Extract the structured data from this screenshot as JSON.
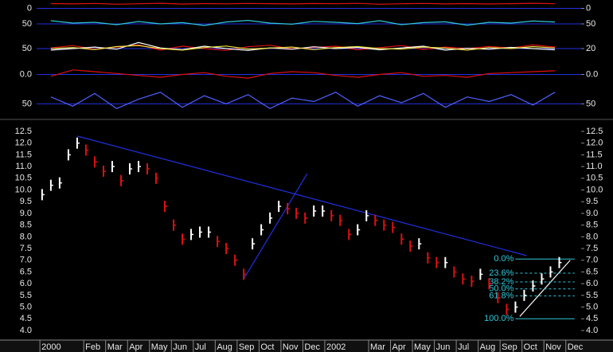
{
  "chart_data": [
    {
      "type": "line",
      "xlim": [
        -1.15,
        23.7
      ],
      "ylim": [
        -100,
        100
      ],
      "yticks": [
        0
      ],
      "x": [
        -0.5,
        0.5,
        1.5,
        2.5,
        3.5,
        4.5,
        5.5,
        6.5,
        7.5,
        8.5,
        9.5,
        10.5,
        11.5,
        12.5,
        13.5,
        14.5,
        15.5,
        16.5,
        17.5,
        18.5,
        19.5,
        20.5,
        21.5,
        22.5
      ],
      "series": [
        {
          "color": "#e01010",
          "values": [
            80,
            75,
            82,
            70,
            78,
            85,
            72,
            80,
            76,
            83,
            79,
            74,
            81,
            77,
            84,
            70,
            78,
            82,
            75,
            80,
            73,
            79,
            85,
            77
          ]
        }
      ]
    },
    {
      "type": "line",
      "xlim": [
        -1.15,
        23.7
      ],
      "ylim": [
        0,
        100
      ],
      "yticks": [
        50
      ],
      "x": [
        -0.5,
        0.5,
        1.5,
        2.5,
        3.5,
        4.5,
        5.5,
        6.5,
        7.5,
        8.5,
        9.5,
        10.5,
        11.5,
        12.5,
        13.5,
        14.5,
        15.5,
        16.5,
        17.5,
        18.5,
        19.5,
        20.5,
        21.5,
        22.5
      ],
      "series": [
        {
          "color": "#30c8d8",
          "values": [
            70,
            55,
            60,
            45,
            65,
            50,
            58,
            40,
            62,
            72,
            55,
            48,
            66,
            60,
            52,
            70,
            45,
            58,
            63,
            42,
            60,
            55,
            68,
            62
          ]
        }
      ]
    },
    {
      "type": "line",
      "xlim": [
        -1.15,
        23.7
      ],
      "ylim": [
        0,
        100
      ],
      "yticks": [
        50
      ],
      "y2lim": [
        -10,
        50
      ],
      "y2ticks": [
        20
      ],
      "x": [
        -0.5,
        0.5,
        1.5,
        2.5,
        3.5,
        4.5,
        5.5,
        6.5,
        7.5,
        8.5,
        9.5,
        10.5,
        11.5,
        12.5,
        13.5,
        14.5,
        15.5,
        16.5,
        17.5,
        18.5,
        19.5,
        20.5,
        21.5,
        22.5
      ],
      "series": [
        {
          "color": "#e01010",
          "values": [
            52,
            60,
            48,
            55,
            62,
            45,
            58,
            50,
            44,
            56,
            61,
            49,
            54,
            58,
            46,
            53,
            60,
            47,
            55,
            50,
            57,
            52,
            62,
            55
          ]
        },
        {
          "color": "#ffffff",
          "values": [
            45,
            50,
            55,
            48,
            70,
            52,
            46,
            58,
            50,
            44,
            52,
            48,
            56,
            50,
            54,
            46,
            52,
            58,
            45,
            51,
            48,
            54,
            50,
            46
          ]
        },
        {
          "color": "#f0e040",
          "axis": "y2",
          "values": [
            20,
            22,
            18,
            24,
            26,
            20,
            17,
            22,
            25,
            19,
            21,
            23,
            18,
            22,
            24,
            20,
            19,
            23,
            21,
            17,
            22,
            20,
            24,
            21
          ]
        }
      ]
    },
    {
      "type": "line",
      "xlim": [
        -1.15,
        23.7
      ],
      "ylim": [
        -1,
        1
      ],
      "yticks": [
        {
          "value": 0,
          "label": "0.0"
        }
      ],
      "x": [
        -0.5,
        0.5,
        1.5,
        2.5,
        3.5,
        4.5,
        5.5,
        6.5,
        7.5,
        8.5,
        9.5,
        10.5,
        11.5,
        12.5,
        13.5,
        14.5,
        15.5,
        16.5,
        17.5,
        18.5,
        19.5,
        20.5,
        21.5,
        22.5
      ],
      "series": [
        {
          "color": "#e01010",
          "values": [
            -0.2,
            0.5,
            0.3,
            0.1,
            -0.1,
            -0.3,
            0.0,
            0.2,
            -0.2,
            -0.4,
            0.1,
            0.3,
            0.2,
            -0.1,
            -0.3,
            0.0,
            0.2,
            -0.2,
            -0.1,
            -0.3,
            0.1,
            0.2,
            0.3,
            0.4
          ]
        }
      ]
    },
    {
      "type": "line",
      "xlim": [
        -1.15,
        23.7
      ],
      "ylim": [
        0,
        120
      ],
      "yticks": [
        50
      ],
      "x": [
        -0.5,
        0.5,
        1.5,
        2.5,
        3.5,
        4.5,
        5.5,
        6.5,
        7.5,
        8.5,
        9.5,
        10.5,
        11.5,
        12.5,
        13.5,
        14.5,
        15.5,
        16.5,
        17.5,
        18.5,
        19.5,
        20.5,
        21.5,
        22.5
      ],
      "series": [
        {
          "color": "#5060ff",
          "values": [
            80,
            40,
            95,
            30,
            70,
            100,
            35,
            85,
            50,
            90,
            30,
            75,
            60,
            100,
            40,
            85,
            55,
            95,
            35,
            80,
            60,
            90,
            45,
            100
          ]
        }
      ]
    },
    {
      "type": "price",
      "xlim": [
        -1.15,
        23.7
      ],
      "ylim": [
        4,
        12.5
      ],
      "yticks": [
        {
          "value": 4,
          "label": "4.0"
        },
        4.5,
        {
          "value": 5,
          "label": "5.0"
        },
        5.5,
        {
          "value": 6,
          "label": "6.0"
        },
        6.5,
        {
          "value": 7,
          "label": "7.0"
        },
        7.5,
        {
          "value": 8,
          "label": "8.0"
        },
        8.5,
        {
          "value": 9,
          "label": "9.0"
        },
        9.5,
        {
          "value": 10,
          "label": "10.0"
        },
        10.5,
        {
          "value": 11,
          "label": "11.0"
        },
        11.5,
        {
          "value": 12,
          "label": "12.0"
        },
        12.5
      ],
      "xticks": [
        {
          "value": -1,
          "label": "2000"
        },
        {
          "value": 1,
          "label": "Feb"
        },
        {
          "value": 2,
          "label": "Mar"
        },
        {
          "value": 3,
          "label": "Apr"
        },
        {
          "value": 4,
          "label": "May"
        },
        {
          "value": 5,
          "label": "Jun"
        },
        {
          "value": 6,
          "label": "Jul"
        },
        {
          "value": 7,
          "label": "Aug"
        },
        {
          "value": 8,
          "label": "Sep"
        },
        {
          "value": 9,
          "label": "Oct"
        },
        {
          "value": 10,
          "label": "Nov"
        },
        {
          "value": 11,
          "label": "Dec"
        },
        {
          "value": 12,
          "label": "2002"
        },
        {
          "value": 14,
          "label": "Mar"
        },
        {
          "value": 15,
          "label": "Apr"
        },
        {
          "value": 16,
          "label": "May"
        },
        {
          "value": 17,
          "label": "Jun"
        },
        {
          "value": 18,
          "label": "Jul"
        },
        {
          "value": 19,
          "label": "Aug"
        },
        {
          "value": 20,
          "label": "Sep"
        },
        {
          "value": 21,
          "label": "Oct"
        },
        {
          "value": 22,
          "label": "Nov"
        },
        {
          "value": 23,
          "label": "Dec"
        }
      ],
      "up_color": "#ffffff",
      "down_color": "#e01010",
      "x": [
        -0.9,
        -0.5,
        -0.1,
        0.3,
        0.7,
        1.1,
        1.5,
        1.9,
        2.3,
        2.7,
        3.1,
        3.5,
        3.9,
        4.3,
        4.7,
        5.1,
        5.5,
        5.9,
        6.3,
        6.7,
        7.1,
        7.5,
        7.9,
        8.3,
        8.7,
        9.1,
        9.5,
        9.9,
        10.3,
        10.7,
        11.1,
        11.5,
        11.9,
        12.3,
        12.7,
        13.1,
        13.5,
        13.9,
        14.3,
        14.7,
        15.1,
        15.5,
        15.9,
        16.3,
        16.7,
        17.1,
        17.5,
        17.9,
        18.3,
        18.7,
        19.1,
        19.5,
        19.9,
        20.3,
        20.7,
        21.1,
        21.5,
        21.9,
        22.3,
        22.7
      ],
      "values": [
        9.8,
        10.2,
        10.3,
        11.5,
        12.0,
        11.7,
        11.2,
        10.8,
        11.0,
        10.4,
        10.9,
        11.0,
        10.9,
        10.5,
        9.3,
        8.5,
        7.9,
        8.1,
        8.2,
        8.2,
        7.8,
        7.5,
        7.0,
        6.4,
        7.7,
        8.3,
        8.8,
        9.3,
        9.2,
        9.0,
        8.8,
        9.1,
        9.1,
        8.9,
        8.7,
        8.1,
        8.3,
        8.9,
        8.7,
        8.5,
        8.4,
        7.9,
        7.6,
        7.7,
        7.1,
        6.9,
        6.9,
        6.5,
        6.2,
        6.1,
        6.4,
        6.0,
        5.4,
        4.9,
        5.0,
        5.5,
        5.9,
        6.2,
        6.5,
        6.9
      ],
      "trendlines": [
        {
          "color": "#2030e0",
          "x": [
            0.7,
            21.2
          ],
          "y": [
            12.3,
            7.2
          ]
        },
        {
          "color": "#2030e0",
          "x": [
            8.3,
            11.2
          ],
          "y": [
            6.2,
            10.7
          ]
        },
        {
          "color": "#ffffff",
          "x": [
            20.9,
            23.2
          ],
          "y": [
            4.6,
            7.0
          ]
        }
      ],
      "fibonacci": {
        "color": "#30c8d8",
        "x": [
          20.7,
          23.4
        ],
        "high": 7.05,
        "low": 4.5,
        "levels": [
          {
            "value": 0,
            "label": "0.0%"
          },
          {
            "value": 23.6,
            "label": "23.6%"
          },
          {
            "value": 38.2,
            "label": "38.2%"
          },
          {
            "value": 50,
            "label": "50.0%"
          },
          {
            "value": 61.8,
            "label": "61.8%"
          },
          {
            "value": 100,
            "label": "100.0%"
          }
        ]
      }
    }
  ]
}
